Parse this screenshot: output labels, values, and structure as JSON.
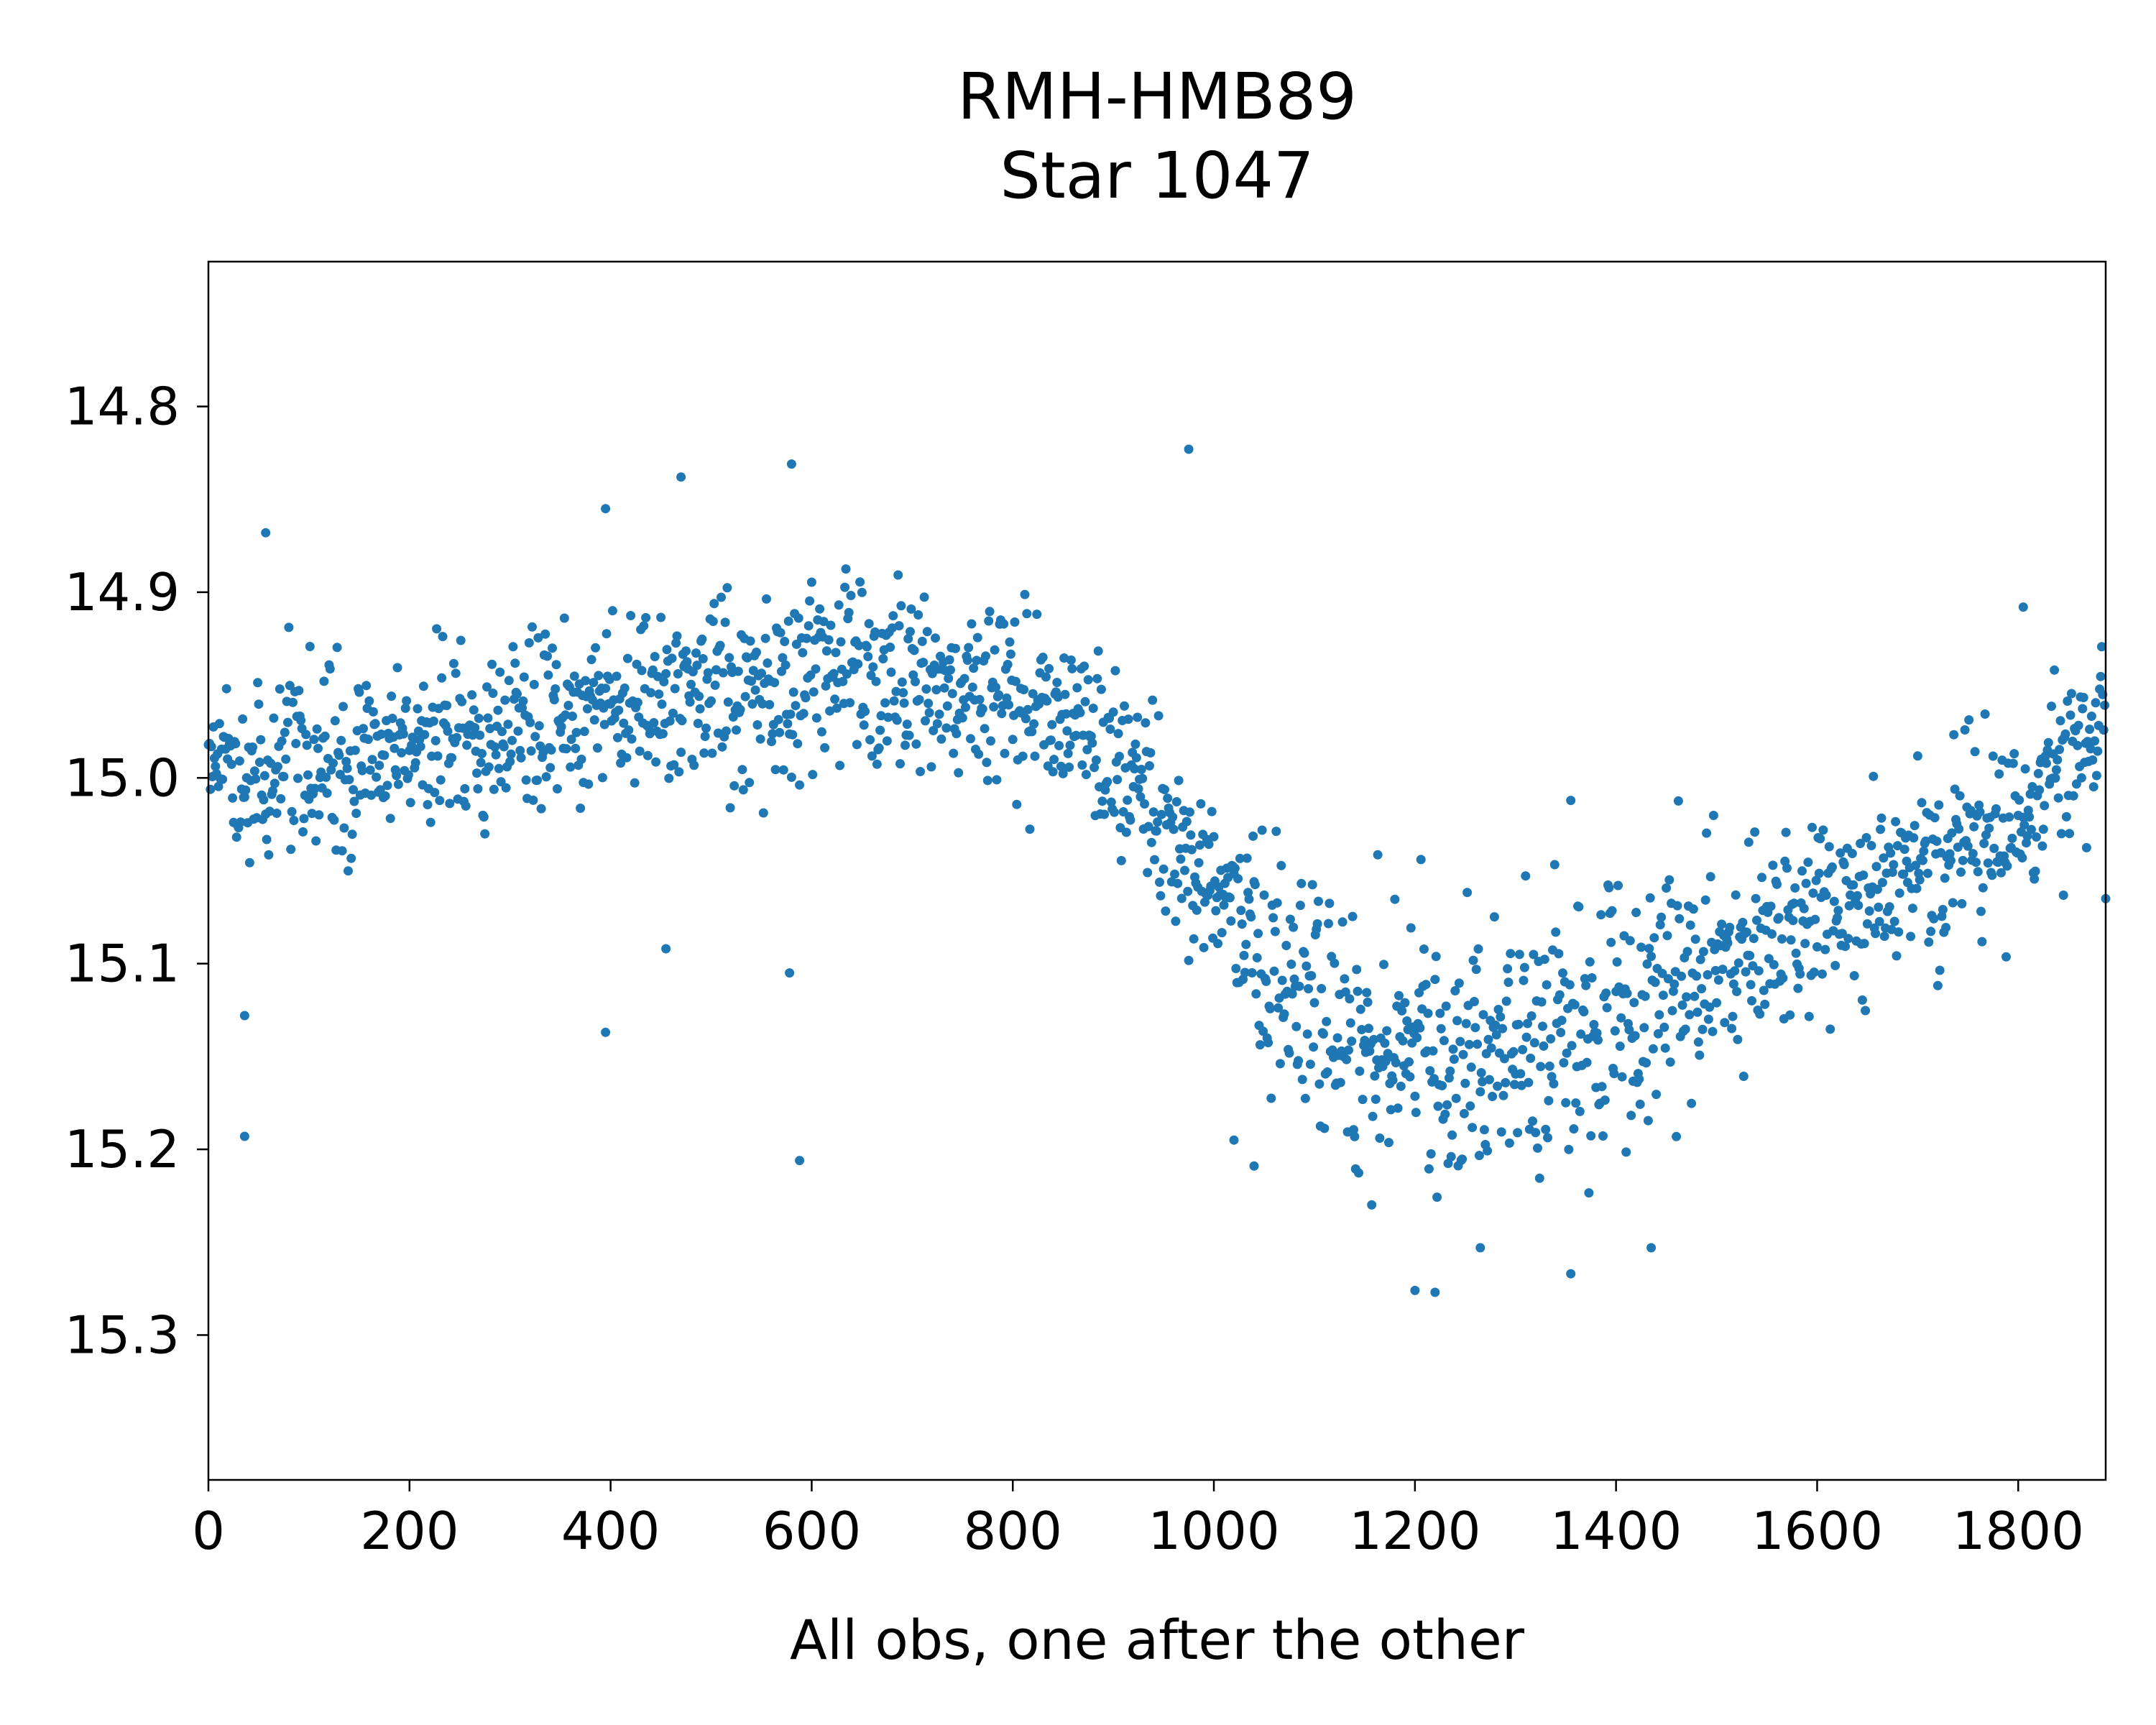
{
  "chart_data": {
    "type": "scatter",
    "title_lines": [
      "RMH-HMB89",
      "Star 1047"
    ],
    "xlabel": "All obs, one after the other",
    "ylabel": "",
    "xlim": [
      0,
      1887
    ],
    "ylim": [
      15.378,
      14.722
    ],
    "y_inverted": true,
    "x_ticks": [
      0,
      200,
      400,
      600,
      800,
      1000,
      1200,
      1400,
      1600,
      1800
    ],
    "x_tick_labels": [
      "0",
      "200",
      "400",
      "600",
      "800",
      "1000",
      "1200",
      "1400",
      "1600",
      "1800"
    ],
    "y_ticks": [
      14.8,
      14.9,
      15.0,
      15.1,
      15.2,
      15.3
    ],
    "y_tick_labels": [
      "14.8",
      "14.9",
      "15.0",
      "15.1",
      "15.2",
      "15.3"
    ],
    "grid": false,
    "legend": "none",
    "marker_color": "#1f77b4",
    "n_points": 1887,
    "trend_points": [
      {
        "x": 0,
        "y": 15.0
      },
      {
        "x": 200,
        "y": 14.985
      },
      {
        "x": 400,
        "y": 14.96
      },
      {
        "x": 600,
        "y": 14.945
      },
      {
        "x": 800,
        "y": 14.955
      },
      {
        "x": 900,
        "y": 14.985
      },
      {
        "x": 1000,
        "y": 15.06
      },
      {
        "x": 1100,
        "y": 15.13
      },
      {
        "x": 1200,
        "y": 15.15
      },
      {
        "x": 1300,
        "y": 15.15
      },
      {
        "x": 1400,
        "y": 15.13
      },
      {
        "x": 1500,
        "y": 15.1
      },
      {
        "x": 1600,
        "y": 15.07
      },
      {
        "x": 1700,
        "y": 15.05
      },
      {
        "x": 1800,
        "y": 15.02
      },
      {
        "x": 1887,
        "y": 14.96
      }
    ],
    "scatter_spread": 0.025,
    "outliers": [
      {
        "x": 36,
        "y": 15.128
      },
      {
        "x": 36,
        "y": 15.193
      },
      {
        "x": 395,
        "y": 15.137
      },
      {
        "x": 578,
        "y": 15.105
      },
      {
        "x": 588,
        "y": 15.206
      },
      {
        "x": 580,
        "y": 14.831
      },
      {
        "x": 975,
        "y": 14.823
      },
      {
        "x": 470,
        "y": 14.838
      },
      {
        "x": 455,
        "y": 15.092
      },
      {
        "x": 1200,
        "y": 15.276
      },
      {
        "x": 1220,
        "y": 15.277
      },
      {
        "x": 1355,
        "y": 15.267
      },
      {
        "x": 1435,
        "y": 15.253
      },
      {
        "x": 1265,
        "y": 15.253
      },
      {
        "x": 1020,
        "y": 15.195
      },
      {
        "x": 1040,
        "y": 15.209
      },
      {
        "x": 1805,
        "y": 14.908
      },
      {
        "x": 1887,
        "y": 15.065
      },
      {
        "x": 57,
        "y": 14.868
      },
      {
        "x": 395,
        "y": 14.855
      }
    ]
  }
}
